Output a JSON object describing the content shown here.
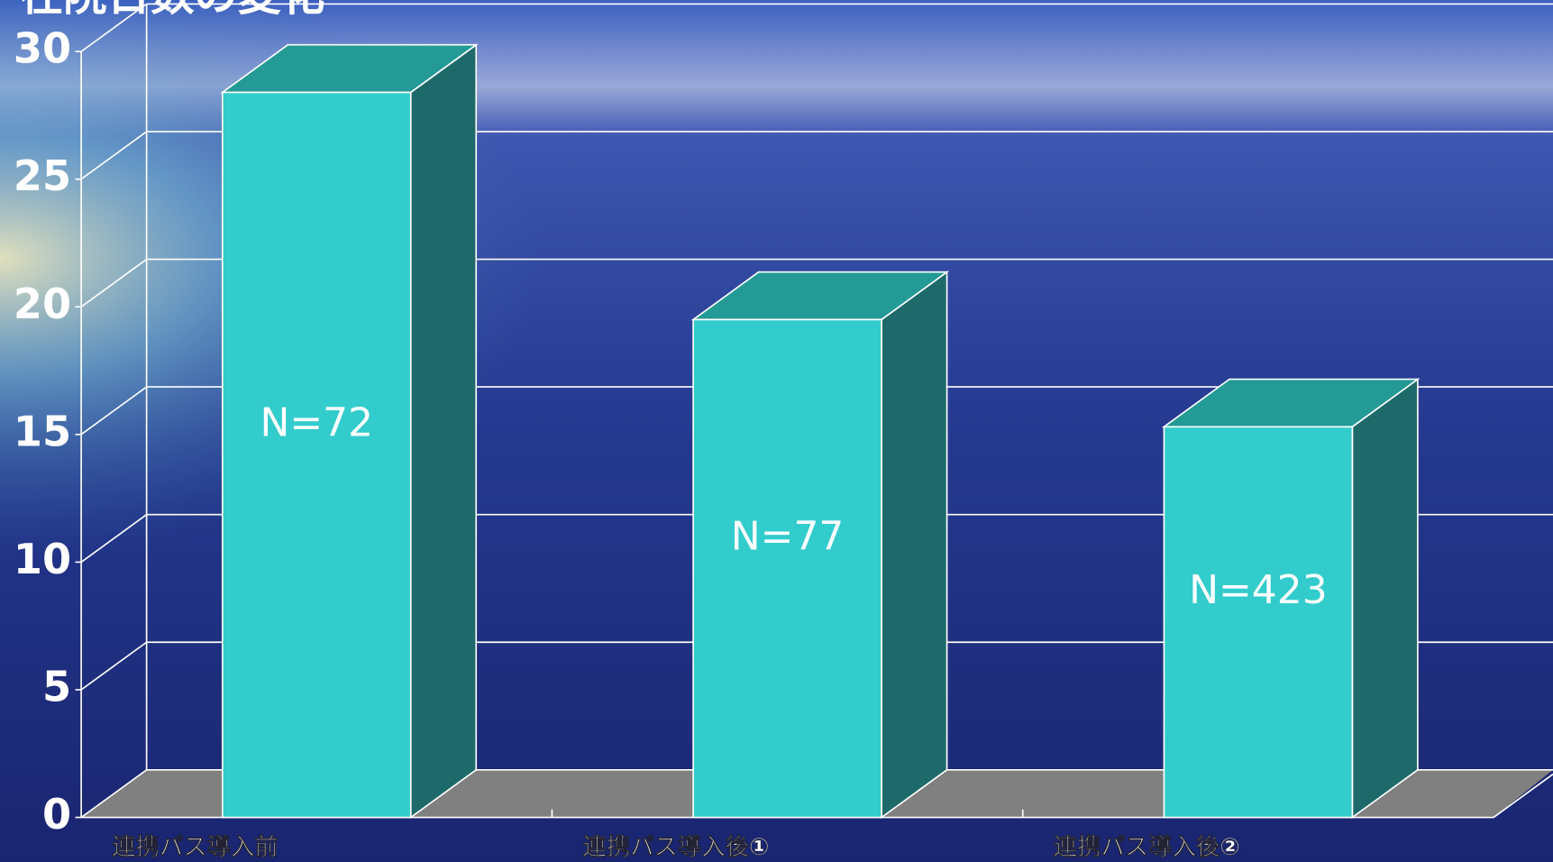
{
  "chart_data": {
    "type": "bar3d",
    "title": "在院日数の変化",
    "categories": [
      "連携パス導入前",
      "連携パス導入後①",
      "連携パス導入後②"
    ],
    "values": [
      28.4,
      19.5,
      15.3
    ],
    "annotations": [
      "N=72",
      "N=77",
      "N=423"
    ],
    "color": "#33cccc",
    "ylim": [
      0,
      30
    ],
    "yticks": [
      0,
      5,
      10,
      15,
      20,
      25,
      30
    ],
    "grid": true
  }
}
